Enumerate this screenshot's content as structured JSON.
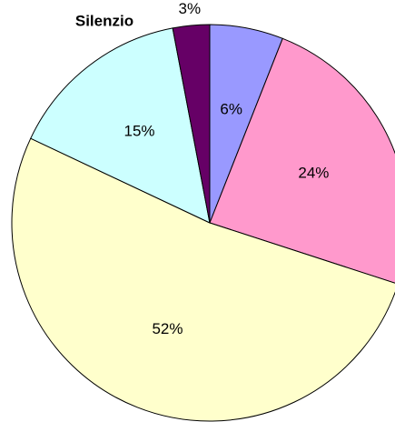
{
  "chart_data": {
    "type": "pie",
    "title": "Silenzio",
    "values": [
      6,
      24,
      52,
      15,
      3
    ],
    "value_labels": [
      "6%",
      "24%",
      "52%",
      "15%",
      "3%"
    ],
    "colors": [
      "#9999ff",
      "#ff99cc",
      "#ffffcc",
      "#ccffff",
      "#660066"
    ]
  }
}
